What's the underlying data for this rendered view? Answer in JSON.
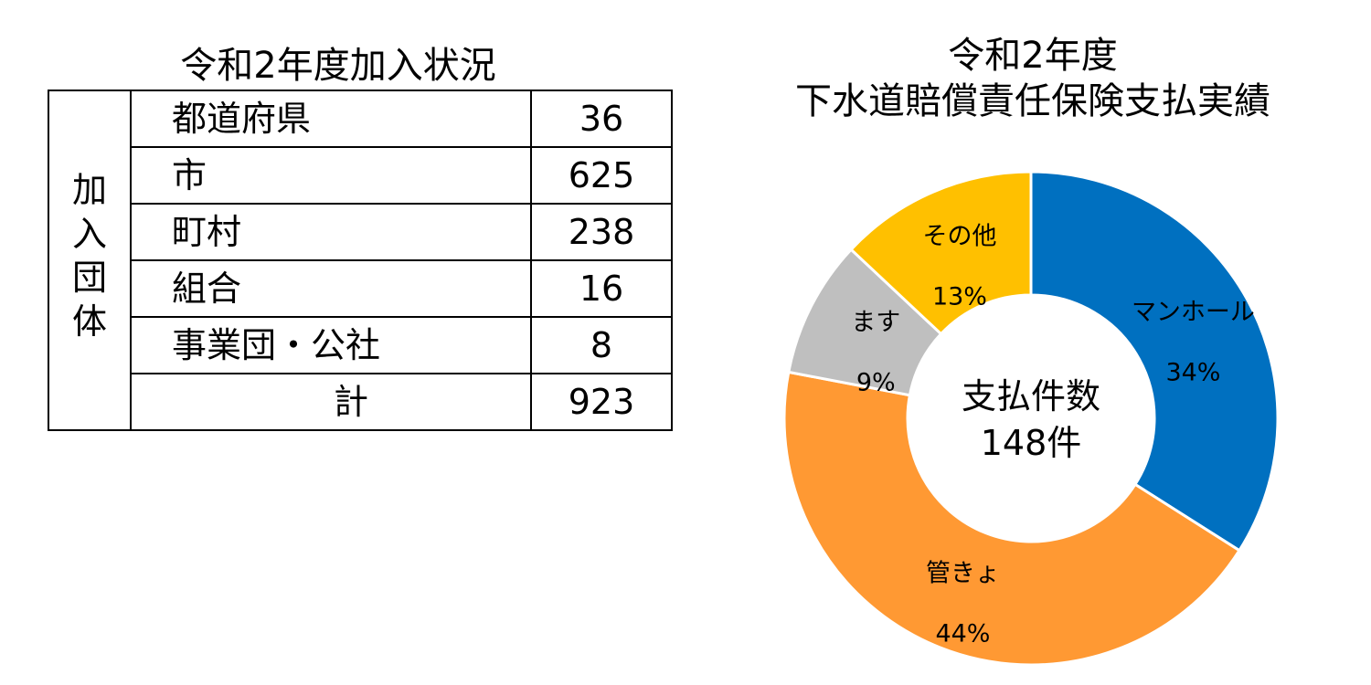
{
  "table": {
    "title": "令和2年度加入状況",
    "group_header": [
      "加",
      "入",
      "団",
      "体"
    ],
    "rows": [
      {
        "label": "都道府県",
        "value": "36"
      },
      {
        "label": "市",
        "value": "625"
      },
      {
        "label": "町村",
        "value": "238"
      },
      {
        "label": "組合",
        "value": "16"
      },
      {
        "label": "事業団・公社",
        "value": "8"
      }
    ],
    "total": {
      "label": "計",
      "value": "923"
    }
  },
  "chart_data": {
    "type": "pie",
    "title": [
      "令和2年度",
      "下水道賠償責任保険支払実績"
    ],
    "center_text": [
      "支払件数",
      "148件"
    ],
    "slices": [
      {
        "label": "マンホール",
        "value": 34,
        "display": "34%",
        "color": "#0070C0"
      },
      {
        "label": "管きょ",
        "value": 44,
        "display": "44%",
        "color": "#FF9933"
      },
      {
        "label": "ます",
        "value": 9,
        "display": "9%",
        "color": "#BFBFBF"
      },
      {
        "label": "その他",
        "value": 13,
        "display": "13%",
        "color": "#FFC000"
      }
    ]
  }
}
